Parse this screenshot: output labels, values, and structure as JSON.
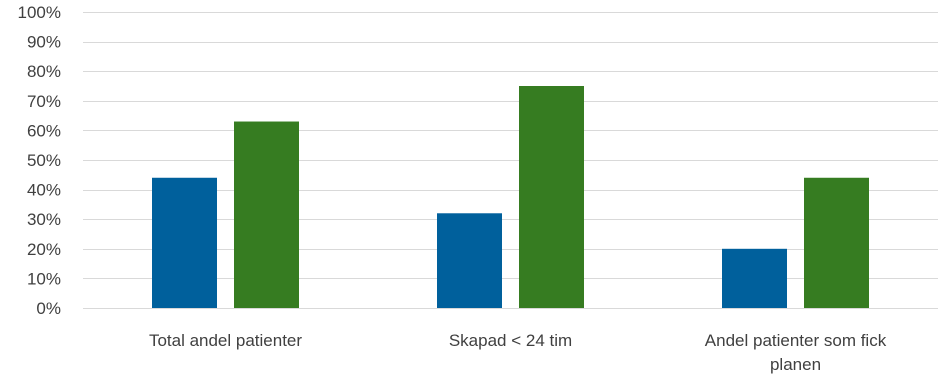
{
  "chart_data": {
    "type": "bar",
    "categories": [
      [
        "Total andel patienter"
      ],
      [
        "Skapad < 24 tim"
      ],
      [
        "Andel patienter som fick",
        "planen"
      ]
    ],
    "series": [
      {
        "color": "#00609C",
        "values": [
          44,
          32,
          20
        ]
      },
      {
        "color": "#367C21",
        "values": [
          63,
          75,
          44
        ]
      }
    ],
    "ylim": [
      0,
      100
    ],
    "yticks": [
      0,
      10,
      20,
      30,
      40,
      50,
      60,
      70,
      80,
      90,
      100
    ],
    "ytick_suffix": "%",
    "grid": true,
    "legend": "none",
    "gridline_color": "#d9d9d9",
    "title": "",
    "xlabel": "",
    "ylabel": ""
  }
}
